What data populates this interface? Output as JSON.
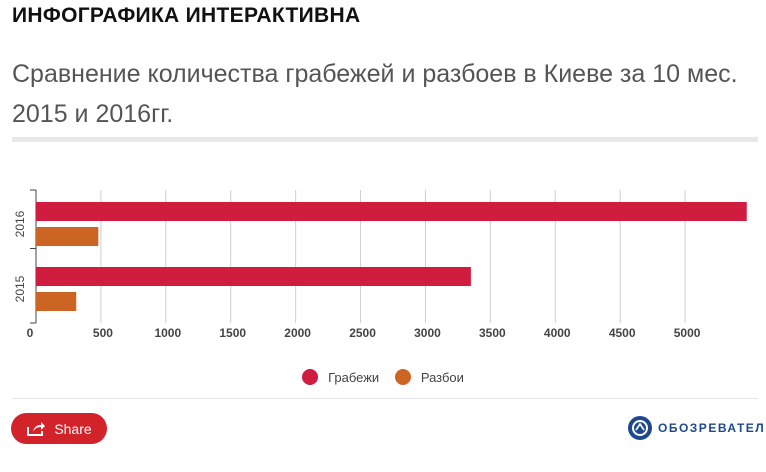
{
  "header": {
    "tag": "ИНФОГРАФИКА ИНТЕРАКТИВНА"
  },
  "chart_data": {
    "type": "bar",
    "orientation": "horizontal",
    "title": "Сравнение количества грабежей и разбоев в Киеве за 10 мес. 2015 и 2016гг.",
    "categories": [
      "2016",
      "2015"
    ],
    "series": [
      {
        "name": "Грабежи",
        "color": "#d01c3f",
        "values": [
          5475,
          3350
        ]
      },
      {
        "name": "Разбои",
        "color": "#cc6524",
        "values": [
          480,
          310
        ]
      }
    ],
    "xlim": [
      0,
      5500
    ],
    "x_ticks": [
      "0",
      "500",
      "1000",
      "1500",
      "2000",
      "2500",
      "3000",
      "3500",
      "4000",
      "4500",
      "5000"
    ],
    "grid": true,
    "legend_position": "bottom"
  },
  "footer": {
    "share_label": "Share",
    "brand": "ОБОЗРЕВАТЕЛЬ"
  }
}
